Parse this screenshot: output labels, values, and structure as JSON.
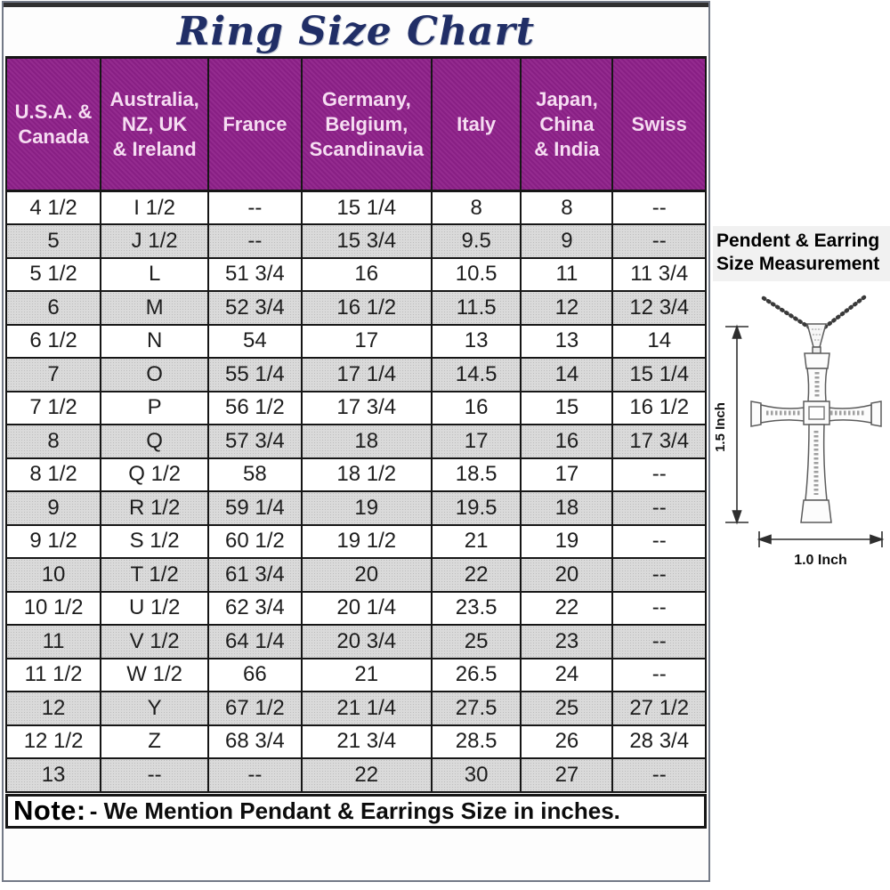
{
  "title": "Ring Size Chart",
  "chart_data": {
    "type": "table",
    "title": "Ring Size Chart",
    "columns": [
      "U.S.A. &\nCanada",
      "Australia,\nNZ, UK\n& Ireland",
      "France",
      "Germany,\nBelgium,\nScandinavia",
      "Italy",
      "Japan,\nChina\n& India",
      "Swiss"
    ],
    "rows": [
      [
        "4 1/2",
        "I 1/2",
        "--",
        "15 1/4",
        "8",
        "8",
        "--"
      ],
      [
        "5",
        "J 1/2",
        "--",
        "15 3/4",
        "9.5",
        "9",
        "--"
      ],
      [
        "5 1/2",
        "L",
        "51 3/4",
        "16",
        "10.5",
        "11",
        "11 3/4"
      ],
      [
        "6",
        "M",
        "52 3/4",
        "16 1/2",
        "11.5",
        "12",
        "12 3/4"
      ],
      [
        "6 1/2",
        "N",
        "54",
        "17",
        "13",
        "13",
        "14"
      ],
      [
        "7",
        "O",
        "55 1/4",
        "17 1/4",
        "14.5",
        "14",
        "15 1/4"
      ],
      [
        "7 1/2",
        "P",
        "56 1/2",
        "17 3/4",
        "16",
        "15",
        "16 1/2"
      ],
      [
        "8",
        "Q",
        "57 3/4",
        "18",
        "17",
        "16",
        "17 3/4"
      ],
      [
        "8 1/2",
        "Q 1/2",
        "58",
        "18 1/2",
        "18.5",
        "17",
        "--"
      ],
      [
        "9",
        "R 1/2",
        "59 1/4",
        "19",
        "19.5",
        "18",
        "--"
      ],
      [
        "9 1/2",
        "S 1/2",
        "60 1/2",
        "19 1/2",
        "21",
        "19",
        "--"
      ],
      [
        "10",
        "T 1/2",
        "61 3/4",
        "20",
        "22",
        "20",
        "--"
      ],
      [
        "10 1/2",
        "U 1/2",
        "62 3/4",
        "20 1/4",
        "23.5",
        "22",
        "--"
      ],
      [
        "11",
        "V 1/2",
        "64 1/4",
        "20 3/4",
        "25",
        "23",
        "--"
      ],
      [
        "11 1/2",
        "W 1/2",
        "66",
        "21",
        "26.5",
        "24",
        "--"
      ],
      [
        "12",
        "Y",
        "67 1/2",
        "21 1/4",
        "27.5",
        "25",
        "27 1/2"
      ],
      [
        "12 1/2",
        "Z",
        "68 3/4",
        "21 3/4",
        "28.5",
        "26",
        "28 3/4"
      ],
      [
        "13",
        "--",
        "--",
        "22",
        "30",
        "27",
        "--"
      ]
    ]
  },
  "note": {
    "label": "Note:",
    "text": "- We Mention Pendant & Earrings Size in inches."
  },
  "side_panel": {
    "heading": "Pendent & Earring\nSize Measurement",
    "height_label": "1.5 Inch",
    "width_label": "1.0 Inch"
  },
  "colors": {
    "header_bg": "#8e2089",
    "header_text": "#f6ddf2",
    "alt_row_bg": "#dadada",
    "title_color": "#202e66",
    "table_border": "#161616",
    "outer_frame": "#737a87"
  }
}
